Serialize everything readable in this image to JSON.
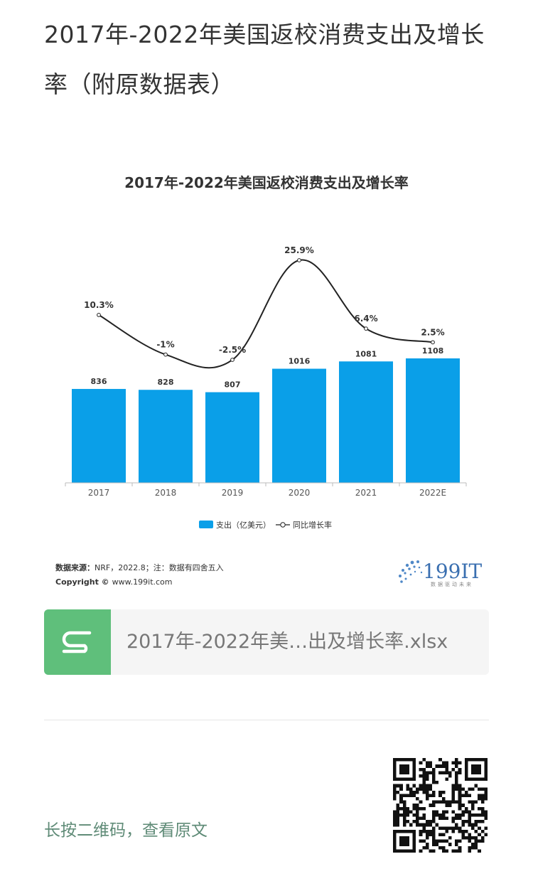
{
  "article": {
    "title": "2017年-2022年美国返校消费支出及增长率（附原数据表）"
  },
  "chart_data": {
    "type": "bar",
    "title": "2017年-2022年美国返校消费支出及增长率",
    "categories": [
      "2017",
      "2018",
      "2019",
      "2020",
      "2021",
      "2022E"
    ],
    "series": [
      {
        "name": "支出（亿美元）",
        "type": "bar",
        "values": [
          836,
          828,
          807,
          1016,
          1081,
          1108
        ],
        "labels": [
          "836",
          "828",
          "807",
          "1016",
          "1081",
          "1108"
        ]
      },
      {
        "name": "同比增长率",
        "type": "line",
        "values": [
          10.3,
          -1,
          -2.5,
          25.9,
          6.4,
          2.5
        ],
        "labels": [
          "10.3%",
          "-1%",
          "-2.5%",
          "25.9%",
          "6.4%",
          "2.5%"
        ]
      }
    ],
    "legend_position": "bottom",
    "grid": false,
    "colors": {
      "bar": "#0a9fe8",
      "line": "#222222"
    }
  },
  "source": {
    "label": "数据来源：",
    "text": "NRF，2022.8；注：数据有四舍五入",
    "copyright_label": "Copyright ©",
    "copyright_text": "www.199it.com"
  },
  "brand": {
    "logo_text": "199IT",
    "tagline": "数据驱动未来"
  },
  "attachment": {
    "icon": "spreadsheet-s-icon",
    "file_name": "2017年-2022年美…出及增长率.xlsx",
    "icon_color": "#5fbf7b"
  },
  "qr": {
    "hint": "长按二维码，查看原文"
  }
}
